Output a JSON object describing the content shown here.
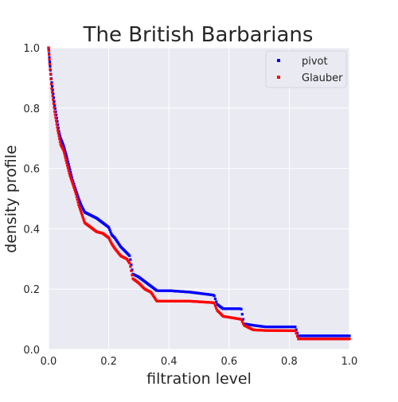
{
  "chart_data": {
    "type": "scatter",
    "title": "The British Barbarians",
    "xlabel": "filtration level",
    "ylabel": "density profile",
    "xlim": [
      0,
      1
    ],
    "ylim": [
      0,
      1
    ],
    "xticks": [
      0,
      0.2,
      0.4,
      0.6,
      0.8,
      1
    ],
    "yticks": [
      0,
      0.2,
      0.4,
      0.6,
      0.8,
      1
    ],
    "xtick_labels": [
      "0.0",
      "0.2",
      "0.4",
      "0.6",
      "0.8",
      "1.0"
    ],
    "ytick_labels": [
      "0.0",
      "0.2",
      "0.4",
      "0.6",
      "0.8",
      "1.0"
    ],
    "grid": true,
    "background": "#eaeaf2",
    "legend_position": "top-right",
    "series": [
      {
        "name": "pivot",
        "color": "#0000ff",
        "marker": "square",
        "anchors": [
          [
            0.0,
            1.0
          ],
          [
            0.005,
            0.94
          ],
          [
            0.01,
            0.89
          ],
          [
            0.015,
            0.85
          ],
          [
            0.02,
            0.81
          ],
          [
            0.025,
            0.78
          ],
          [
            0.03,
            0.75
          ],
          [
            0.035,
            0.72
          ],
          [
            0.04,
            0.7
          ],
          [
            0.05,
            0.675
          ],
          [
            0.06,
            0.64
          ],
          [
            0.07,
            0.6
          ],
          [
            0.08,
            0.56
          ],
          [
            0.09,
            0.53
          ],
          [
            0.1,
            0.5
          ],
          [
            0.11,
            0.475
          ],
          [
            0.12,
            0.455
          ],
          [
            0.14,
            0.445
          ],
          [
            0.16,
            0.435
          ],
          [
            0.18,
            0.42
          ],
          [
            0.2,
            0.405
          ],
          [
            0.21,
            0.38
          ],
          [
            0.22,
            0.37
          ],
          [
            0.24,
            0.34
          ],
          [
            0.26,
            0.32
          ],
          [
            0.27,
            0.31
          ],
          [
            0.28,
            0.25
          ],
          [
            0.3,
            0.24
          ],
          [
            0.32,
            0.225
          ],
          [
            0.34,
            0.21
          ],
          [
            0.36,
            0.195
          ],
          [
            0.4,
            0.195
          ],
          [
            0.47,
            0.19
          ],
          [
            0.55,
            0.18
          ],
          [
            0.56,
            0.15
          ],
          [
            0.58,
            0.135
          ],
          [
            0.64,
            0.135
          ],
          [
            0.65,
            0.085
          ],
          [
            0.68,
            0.08
          ],
          [
            0.72,
            0.075
          ],
          [
            0.82,
            0.075
          ],
          [
            0.83,
            0.045
          ],
          [
            0.9,
            0.045
          ],
          [
            1.0,
            0.045
          ]
        ]
      },
      {
        "name": "Glauber",
        "color": "#ff0000",
        "marker": "square",
        "anchors": [
          [
            0.0,
            1.0
          ],
          [
            0.005,
            0.93
          ],
          [
            0.01,
            0.87
          ],
          [
            0.015,
            0.83
          ],
          [
            0.02,
            0.79
          ],
          [
            0.025,
            0.76
          ],
          [
            0.03,
            0.73
          ],
          [
            0.035,
            0.705
          ],
          [
            0.04,
            0.68
          ],
          [
            0.05,
            0.66
          ],
          [
            0.06,
            0.62
          ],
          [
            0.07,
            0.58
          ],
          [
            0.08,
            0.55
          ],
          [
            0.09,
            0.52
          ],
          [
            0.1,
            0.48
          ],
          [
            0.11,
            0.45
          ],
          [
            0.12,
            0.42
          ],
          [
            0.14,
            0.405
          ],
          [
            0.16,
            0.39
          ],
          [
            0.18,
            0.385
          ],
          [
            0.2,
            0.37
          ],
          [
            0.21,
            0.35
          ],
          [
            0.22,
            0.335
          ],
          [
            0.24,
            0.31
          ],
          [
            0.26,
            0.3
          ],
          [
            0.27,
            0.285
          ],
          [
            0.28,
            0.235
          ],
          [
            0.3,
            0.22
          ],
          [
            0.32,
            0.2
          ],
          [
            0.34,
            0.19
          ],
          [
            0.36,
            0.16
          ],
          [
            0.4,
            0.16
          ],
          [
            0.47,
            0.16
          ],
          [
            0.55,
            0.155
          ],
          [
            0.56,
            0.13
          ],
          [
            0.58,
            0.11
          ],
          [
            0.64,
            0.1
          ],
          [
            0.65,
            0.08
          ],
          [
            0.68,
            0.065
          ],
          [
            0.72,
            0.063
          ],
          [
            0.82,
            0.062
          ],
          [
            0.83,
            0.035
          ],
          [
            0.9,
            0.035
          ],
          [
            1.0,
            0.035
          ]
        ]
      }
    ]
  }
}
